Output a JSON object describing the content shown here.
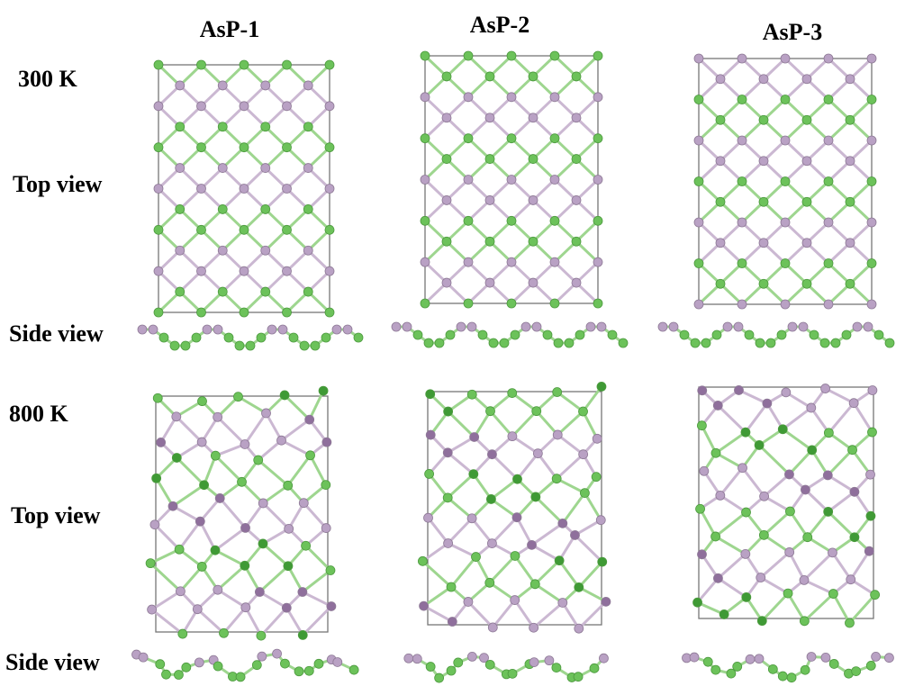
{
  "columns": [
    "AsP-1",
    "AsP-2",
    "AsP-3"
  ],
  "rows": [
    {
      "label": "300 K",
      "top_view": "Top view",
      "side_view": "Side view"
    },
    {
      "label": "800 K",
      "top_view": "Top view",
      "side_view": "Side view"
    }
  ]
}
